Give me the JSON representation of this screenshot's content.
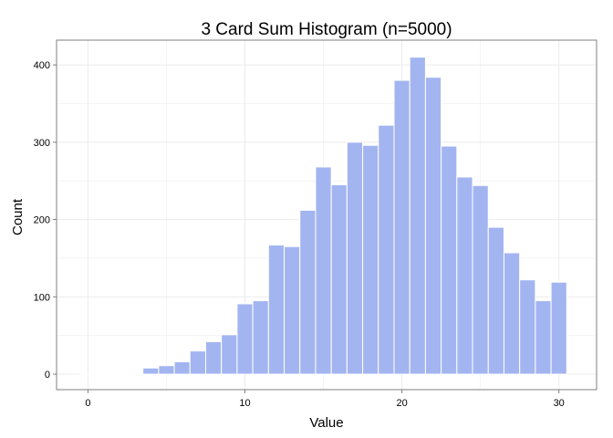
{
  "chart_data": {
    "type": "bar",
    "title": "3 Card Sum Histogram (n=5000)",
    "xlabel": "Value",
    "ylabel": "Count",
    "xlim": [
      -2,
      32.4
    ],
    "ylim": [
      -20,
      432
    ],
    "x_ticks": [
      0,
      10,
      20,
      30
    ],
    "y_ticks": [
      0,
      100,
      200,
      300,
      400
    ],
    "grid": true,
    "bin_width": 1,
    "bins": [
      {
        "x": 0,
        "count": 0
      },
      {
        "x": 1,
        "count": 0
      },
      {
        "x": 2,
        "count": 0
      },
      {
        "x": 3,
        "count": 1
      },
      {
        "x": 4,
        "count": 8
      },
      {
        "x": 5,
        "count": 11
      },
      {
        "x": 6,
        "count": 16
      },
      {
        "x": 7,
        "count": 30
      },
      {
        "x": 8,
        "count": 42
      },
      {
        "x": 9,
        "count": 51
      },
      {
        "x": 10,
        "count": 91
      },
      {
        "x": 11,
        "count": 95
      },
      {
        "x": 12,
        "count": 167
      },
      {
        "x": 13,
        "count": 165
      },
      {
        "x": 14,
        "count": 212
      },
      {
        "x": 15,
        "count": 268
      },
      {
        "x": 16,
        "count": 245
      },
      {
        "x": 17,
        "count": 300
      },
      {
        "x": 18,
        "count": 296
      },
      {
        "x": 19,
        "count": 322
      },
      {
        "x": 20,
        "count": 380
      },
      {
        "x": 21,
        "count": 410
      },
      {
        "x": 22,
        "count": 384
      },
      {
        "x": 23,
        "count": 295
      },
      {
        "x": 24,
        "count": 255
      },
      {
        "x": 25,
        "count": 244
      },
      {
        "x": 26,
        "count": 190
      },
      {
        "x": 27,
        "count": 157
      },
      {
        "x": 28,
        "count": 122
      },
      {
        "x": 29,
        "count": 95
      },
      {
        "x": 30,
        "count": 119
      }
    ],
    "colors": {
      "bar_fill": "#a3b5f0",
      "bar_outline": "#ffffff",
      "grid": "#ebebeb",
      "panel_border": "#7f7f7f"
    }
  }
}
